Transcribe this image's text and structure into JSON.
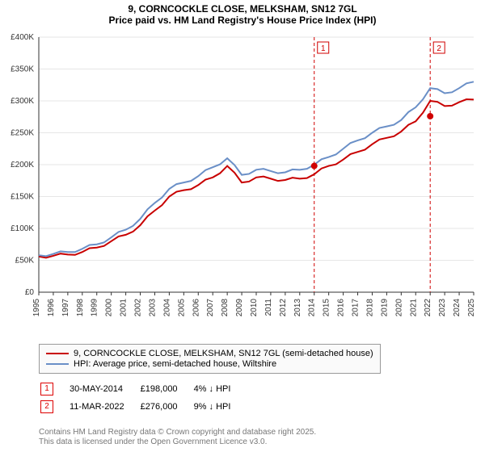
{
  "title": {
    "line1": "9, CORNCOCKLE CLOSE, MELKSHAM, SN12 7GL",
    "line2": "Price paid vs. HM Land Registry's House Price Index (HPI)"
  },
  "chart": {
    "type": "line",
    "background_color": "#ffffff",
    "plot_bg_color": "#ffffff",
    "grid_color": "#e6e6e6",
    "axis_color": "#333333",
    "tick_font_size": 10,
    "x": {
      "ticks": [
        "1995",
        "1996",
        "1997",
        "1998",
        "1999",
        "2000",
        "2001",
        "2002",
        "2003",
        "2004",
        "2005",
        "2006",
        "2007",
        "2008",
        "2009",
        "2010",
        "2011",
        "2012",
        "2013",
        "2014",
        "2015",
        "2016",
        "2017",
        "2018",
        "2019",
        "2020",
        "2021",
        "2022",
        "2023",
        "2024",
        "2025"
      ],
      "rotation": -90
    },
    "y": {
      "min": 0,
      "max": 400000,
      "step": 50000,
      "labels": [
        "£0",
        "£50K",
        "£100K",
        "£150K",
        "£200K",
        "£250K",
        "£300K",
        "£350K",
        "£400K"
      ]
    },
    "series": [
      {
        "name": "property",
        "color": "#c80000",
        "width": 2,
        "values": [
          56000,
          57000,
          59000,
          63000,
          70000,
          80000,
          90000,
          105000,
          128000,
          150000,
          160000,
          168000,
          180000,
          198000,
          172000,
          180000,
          178000,
          176000,
          178000,
          185000,
          198000,
          208000,
          220000,
          232000,
          242000,
          252000,
          268000,
          300000,
          292000,
          298000,
          302000
        ]
      },
      {
        "name": "hpi",
        "color": "#6a8fc7",
        "width": 2,
        "values": [
          58000,
          60000,
          63000,
          68000,
          75000,
          86000,
          98000,
          115000,
          140000,
          162000,
          172000,
          182000,
          196000,
          210000,
          184000,
          192000,
          190000,
          188000,
          192000,
          200000,
          212000,
          225000,
          238000,
          250000,
          260000,
          270000,
          290000,
          320000,
          312000,
          320000,
          330000
        ]
      }
    ],
    "marker_lines": [
      {
        "x_index": 19,
        "label": "1",
        "color": "#d00000",
        "dash": "4,3"
      },
      {
        "x_index": 27,
        "label": "2",
        "color": "#d00000",
        "dash": "4,3"
      }
    ],
    "marker_points": [
      {
        "x_index": 19,
        "value": 198000,
        "color": "#d00000",
        "radius": 4
      },
      {
        "x_index": 27,
        "value": 276000,
        "color": "#d00000",
        "radius": 4
      }
    ]
  },
  "legend": {
    "rows": [
      {
        "color": "#c80000",
        "label": "9, CORNCOCKLE CLOSE, MELKSHAM, SN12 7GL (semi-detached house)"
      },
      {
        "color": "#6a8fc7",
        "label": "HPI: Average price, semi-detached house, Wiltshire"
      }
    ]
  },
  "markers": {
    "rows": [
      {
        "badge": "1",
        "date": "30-MAY-2014",
        "price": "£198,000",
        "delta": "4% ↓ HPI"
      },
      {
        "badge": "2",
        "date": "11-MAR-2022",
        "price": "£276,000",
        "delta": "9% ↓ HPI"
      }
    ]
  },
  "footer": {
    "line1": "Contains HM Land Registry data © Crown copyright and database right 2025.",
    "line2": "This data is licensed under the Open Government Licence v3.0."
  }
}
